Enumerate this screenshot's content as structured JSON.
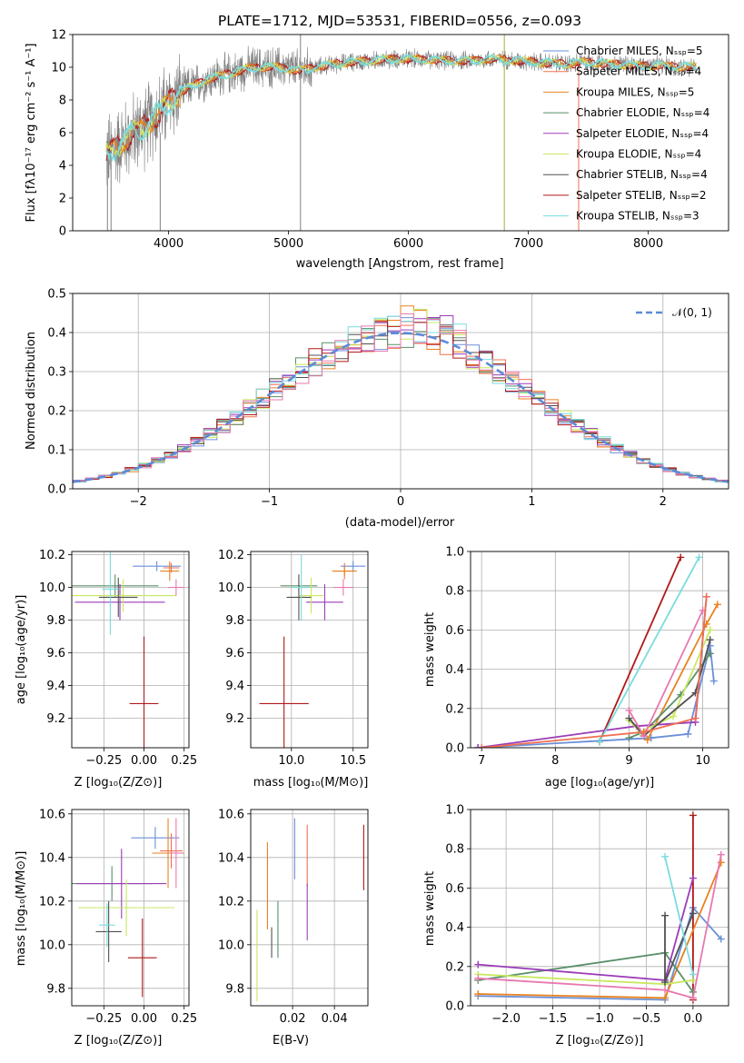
{
  "title": "PLATE=1712, MJD=53531, FIBERID=0556, z=0.093",
  "colors": [
    "#6a8fd8",
    "#f07050",
    "#e8821e",
    "#5a8f6a",
    "#9b3cb8",
    "#c8e860",
    "#505050",
    "#b01818",
    "#7adcdc",
    "#e878b0"
  ],
  "spectrum": {
    "xlabel": "wavelength [Angstrom, rest frame]",
    "ylabel": "Flux [fλ10⁻¹⁷ erg cm⁻² s⁻¹ A⁻¹]",
    "xlim": [
      3200,
      8670
    ],
    "ylim": [
      0,
      12
    ],
    "xticks": [
      "4000",
      "5000",
      "6000",
      "7000",
      "8000"
    ],
    "yticks": [
      "0",
      "2",
      "4",
      "6",
      "8",
      "10",
      "12"
    ],
    "legend": [
      "Chabrier MILES, Nₛₛₚ=5",
      "Salpeter MILES, Nₛₛₚ=4",
      "Kroupa MILES, Nₛₛₚ=5",
      "Chabrier ELODIE, Nₛₛₚ=4",
      "Salpeter ELODIE, Nₛₛₚ=4",
      "Kroupa ELODIE, Nₛₛₚ=4",
      "Chabrier STELIB, Nₛₛₚ=4",
      "Salpeter STELIB, Nₛₛₚ=2",
      "Kroupa STELIB, Nₛₛₚ=3"
    ]
  },
  "residuals": {
    "xlabel": "(data-model)/error",
    "ylabel": "Normed distribution",
    "xlim": [
      -2.5,
      2.5
    ],
    "ylim": [
      0,
      0.5
    ],
    "xticks": [
      "−2",
      "−1",
      "0",
      "1",
      "2"
    ],
    "yticks": [
      "0.0",
      "0.1",
      "0.2",
      "0.3",
      "0.4",
      "0.5"
    ],
    "legend": "𝒩(0, 1)"
  },
  "age_vs_Z": {
    "xlabel": "Z [log₁₀(Z/Z⊙)]",
    "ylabel": "age  [log₁₀(age/yr)]",
    "xticks": [
      "−0.25",
      "0.00",
      "0.25"
    ],
    "yticks": [
      "9.2",
      "9.4",
      "9.6",
      "9.8",
      "10.0",
      "10.2"
    ]
  },
  "age_vs_mass": {
    "xlabel": "mass [log₁₀(M/M⊙)]",
    "xticks": [
      "10.0",
      "10.5"
    ],
    "yticks": [
      "9.2",
      "9.4",
      "9.6",
      "9.8",
      "10.0",
      "10.2"
    ]
  },
  "weight_vs_age": {
    "xlabel": "age  [log₁₀(age/yr)]",
    "ylabel": "mass weight",
    "xticks": [
      "7",
      "8",
      "9",
      "10"
    ],
    "yticks": [
      "0.0",
      "0.2",
      "0.4",
      "0.6",
      "0.8",
      "1.0"
    ]
  },
  "mass_vs_Z": {
    "xlabel": "Z [log₁₀(Z/Z⊙)]",
    "ylabel": "mass [log₁₀(M/M⊙)]",
    "xticks": [
      "−0.25",
      "0.00",
      "0.25"
    ],
    "yticks": [
      "9.8",
      "10.0",
      "10.2",
      "10.4",
      "10.6"
    ]
  },
  "mass_vs_EBV": {
    "xlabel": "E(B-V)",
    "xticks": [
      "0.02",
      "0.04"
    ],
    "yticks": [
      "9.8",
      "10.0",
      "10.2",
      "10.4",
      "10.6"
    ]
  },
  "weight_vs_Z": {
    "xlabel": "Z [log₁₀(Z/Z⊙)]",
    "ylabel": "mass weight",
    "xticks": [
      "−2.0",
      "−1.5",
      "−1.0",
      "−0.5",
      "0.0"
    ],
    "yticks": [
      "0.0",
      "0.2",
      "0.4",
      "0.6",
      "0.8",
      "1.0"
    ]
  },
  "chart_data": [
    {
      "type": "line",
      "title": "PLATE=1712, MJD=53531, FIBERID=0556, z=0.093",
      "xlabel": "wavelength [Angstrom, rest frame]",
      "ylabel": "Flux",
      "xlim": [
        3200,
        8670
      ],
      "ylim": [
        0,
        12
      ],
      "x": [
        3480,
        3600,
        3800,
        3950,
        4100,
        4300,
        4500,
        4700,
        4900,
        5100,
        5300,
        5500,
        5700,
        5900,
        6100,
        6300,
        6500,
        6700,
        6900,
        7100,
        7300,
        7500,
        7700,
        7900,
        8100,
        8400
      ],
      "series": [
        {
          "name": "Chabrier MILES, NSSP=5",
          "values": [
            4.6,
            5.4,
            6.4,
            7.4,
            8.5,
            9.2,
            9.6,
            10.0,
            10.0,
            9.8,
            10.1,
            10.3,
            10.4,
            10.5,
            10.5,
            10.4,
            10.4,
            10.5,
            10.4,
            10.3,
            10.2,
            10.3,
            10.2,
            10.1,
            10.1,
            10.0
          ]
        }
      ]
    },
    {
      "type": "line",
      "xlabel": "(data-model)/error",
      "ylabel": "Normed distribution",
      "xlim": [
        -2.5,
        2.5
      ],
      "ylim": [
        0,
        0.5
      ],
      "series": [
        {
          "name": "𝒩(0, 1)",
          "mean": 0,
          "sigma": 1
        }
      ]
    },
    {
      "type": "scatter",
      "xlabel": "Z",
      "ylabel": "age",
      "xlim": [
        -0.45,
        0.28
      ],
      "ylim": [
        9.02,
        10.22
      ],
      "points": [
        {
          "x": 0.08,
          "y": 10.13,
          "xerr": 0.15,
          "yerr": 0.03
        },
        {
          "x": 0.17,
          "y": 10.12,
          "xerr": 0.05,
          "yerr": 0.03
        },
        {
          "x": 0.16,
          "y": 10.1,
          "xerr": 0.06,
          "yerr": 0.06
        },
        {
          "x": -0.18,
          "y": 10.01,
          "xerr": 0.27,
          "yerr": 0.07
        },
        {
          "x": -0.15,
          "y": 9.91,
          "xerr": 0.28,
          "yerr": 0.11
        },
        {
          "x": -0.13,
          "y": 9.95,
          "xerr": 0.33,
          "yerr": 0.1
        },
        {
          "x": -0.16,
          "y": 9.94,
          "xerr": 0.12,
          "yerr": 0.12
        },
        {
          "x": 0.0,
          "y": 9.29,
          "xerr": 0.09,
          "yerr": 0.41
        },
        {
          "x": -0.21,
          "y": 9.99,
          "xerr": 0.05,
          "yerr": 0.28
        },
        {
          "x": 0.2,
          "y": 10.0,
          "xerr": 0.05,
          "yerr": 0.05
        }
      ]
    },
    {
      "type": "scatter",
      "xlabel": "mass",
      "ylabel": "age",
      "xlim": [
        9.67,
        10.62
      ],
      "ylim": [
        9.02,
        10.22
      ],
      "points": [
        {
          "x": 10.5,
          "y": 10.13,
          "xerr": 0.1,
          "yerr": 0.03
        },
        {
          "x": 10.43,
          "y": 10.1,
          "xerr": 0.08,
          "yerr": 0.05
        },
        {
          "x": 10.43,
          "y": 10.1,
          "xerr": 0.1,
          "yerr": 0.03
        },
        {
          "x": 10.06,
          "y": 10.01,
          "xerr": 0.15,
          "yerr": 0.05
        },
        {
          "x": 10.27,
          "y": 9.91,
          "xerr": 0.15,
          "yerr": 0.11
        },
        {
          "x": 10.16,
          "y": 9.95,
          "xerr": 0.1,
          "yerr": 0.11
        },
        {
          "x": 10.06,
          "y": 9.94,
          "xerr": 0.1,
          "yerr": 0.14
        },
        {
          "x": 9.94,
          "y": 9.29,
          "xerr": 0.2,
          "yerr": 0.41
        },
        {
          "x": 10.08,
          "y": 10.0,
          "xerr": 0.08,
          "yerr": 0.2
        },
        {
          "x": 10.42,
          "y": 10.0,
          "xerr": 0.08,
          "yerr": 0.05
        }
      ]
    },
    {
      "type": "line",
      "xlabel": "age",
      "ylabel": "mass weight",
      "xlim": [
        6.85,
        10.35
      ],
      "ylim": [
        0,
        1
      ],
      "series": [
        {
          "name": "",
          "x": [
            6.95,
            9.3,
            9.8,
            10.1,
            10.15
          ],
          "values": [
            0.0,
            0.05,
            0.07,
            0.52,
            0.34
          ]
        },
        {
          "name": "",
          "x": [
            8.6,
            9.7
          ],
          "values": [
            0.03,
            0.97
          ]
        },
        {
          "name": "",
          "x": [
            9.25,
            10.05,
            10.2
          ],
          "values": [
            0.04,
            0.63,
            0.73
          ]
        },
        {
          "name": "",
          "x": [
            9.0,
            9.2,
            9.7,
            10.1
          ],
          "values": [
            0.05,
            0.08,
            0.27,
            0.48
          ]
        },
        {
          "name": "",
          "x": [
            6.95,
            9.1,
            9.9,
            10.05
          ],
          "values": [
            0.0,
            0.11,
            0.13,
            0.77
          ]
        },
        {
          "name": "",
          "x": [
            9.0,
            9.15,
            9.6,
            10.1
          ],
          "values": [
            0.14,
            0.08,
            0.16,
            0.6
          ]
        },
        {
          "name": "",
          "x": [
            9.0,
            9.2,
            9.9,
            10.1
          ],
          "values": [
            0.15,
            0.06,
            0.28,
            0.55
          ]
        },
        {
          "name": "",
          "x": [
            8.6,
            9.95
          ],
          "values": [
            0.03,
            0.97
          ]
        },
        {
          "name": "",
          "x": [
            9.0,
            9.2,
            10.0
          ],
          "values": [
            0.19,
            0.06,
            0.7
          ]
        },
        {
          "name": "",
          "x": [
            7.0,
            9.2,
            9.9,
            10.05
          ],
          "values": [
            0.0,
            0.08,
            0.15,
            0.77
          ]
        }
      ]
    },
    {
      "type": "scatter",
      "xlabel": "Z",
      "ylabel": "mass",
      "xlim": [
        -0.45,
        0.28
      ],
      "ylim": [
        9.72,
        10.62
      ],
      "points": [
        {
          "x": 0.07,
          "y": 10.49,
          "xerr": 0.15,
          "yerr": 0.05
        },
        {
          "x": 0.17,
          "y": 10.43,
          "xerr": 0.07,
          "yerr": 0.08
        },
        {
          "x": 0.15,
          "y": 10.42,
          "xerr": 0.1,
          "yerr": 0.16
        },
        {
          "x": -0.2,
          "y": 10.28,
          "xerr": 0.25,
          "yerr": 0.08
        },
        {
          "x": -0.14,
          "y": 10.28,
          "xerr": 0.28,
          "yerr": 0.16
        },
        {
          "x": -0.11,
          "y": 10.17,
          "xerr": 0.3,
          "yerr": 0.13
        },
        {
          "x": -0.22,
          "y": 10.06,
          "xerr": 0.08,
          "yerr": 0.14
        },
        {
          "x": -0.01,
          "y": 9.94,
          "xerr": 0.09,
          "yerr": 0.18
        },
        {
          "x": -0.23,
          "y": 10.09,
          "xerr": 0.05,
          "yerr": 0.1
        },
        {
          "x": 0.2,
          "y": 10.42,
          "xerr": 0.04,
          "yerr": 0.16
        }
      ]
    },
    {
      "type": "scatter",
      "xlabel": "E(B-V)",
      "ylabel": "mass",
      "xlim": [
        0.0,
        0.056
      ],
      "ylim": [
        9.72,
        10.62
      ],
      "points": [
        {
          "x": 0.021,
          "y": 10.44,
          "yerr": 0.14
        },
        {
          "x": 0.027,
          "y": 10.41,
          "yerr": 0.14
        },
        {
          "x": 0.008,
          "y": 10.27,
          "yerr": 0.2
        },
        {
          "x": 0.013,
          "y": 10.07,
          "yerr": 0.13
        },
        {
          "x": 0.027,
          "y": 10.15,
          "yerr": 0.13
        },
        {
          "x": 0.003,
          "y": 9.95,
          "yerr": 0.21
        },
        {
          "x": 0.01,
          "y": 10.01,
          "yerr": 0.07
        },
        {
          "x": 0.054,
          "y": 10.4,
          "yerr": 0.15
        }
      ]
    },
    {
      "type": "line",
      "xlabel": "Z",
      "ylabel": "mass weight",
      "xlim": [
        -2.38,
        0.38
      ],
      "ylim": [
        0,
        1
      ],
      "series": [
        {
          "name": "",
          "x": [
            -2.3,
            -0.3,
            0.0,
            0.3
          ],
          "values": [
            0.05,
            0.03,
            0.5,
            0.34
          ]
        },
        {
          "name": "",
          "x": [
            0.0,
            0.0
          ],
          "values": [
            0.03,
            0.97
          ]
        },
        {
          "name": "",
          "x": [
            -2.3,
            -0.3,
            0.3
          ],
          "values": [
            0.06,
            0.04,
            0.73
          ]
        },
        {
          "name": "",
          "x": [
            -2.3,
            -0.3,
            0.0
          ],
          "values": [
            0.13,
            0.27,
            0.07
          ]
        },
        {
          "name": "",
          "x": [
            -2.3,
            -0.3,
            0.0
          ],
          "values": [
            0.21,
            0.13,
            0.65
          ]
        },
        {
          "name": "",
          "x": [
            -2.3,
            -0.3,
            0.0
          ],
          "values": [
            0.16,
            0.11,
            0.13
          ]
        },
        {
          "name": "",
          "x": [
            -0.3,
            -0.3,
            0.0
          ],
          "values": [
            0.46,
            0.12,
            0.47
          ]
        },
        {
          "name": "",
          "x": [
            -0.3,
            0.0
          ],
          "values": [
            0.76,
            0.16
          ]
        },
        {
          "name": "",
          "x": [
            -2.3,
            -0.3,
            0.0,
            0.3
          ],
          "values": [
            0.14,
            0.08,
            0.04,
            0.77
          ]
        }
      ]
    }
  ]
}
